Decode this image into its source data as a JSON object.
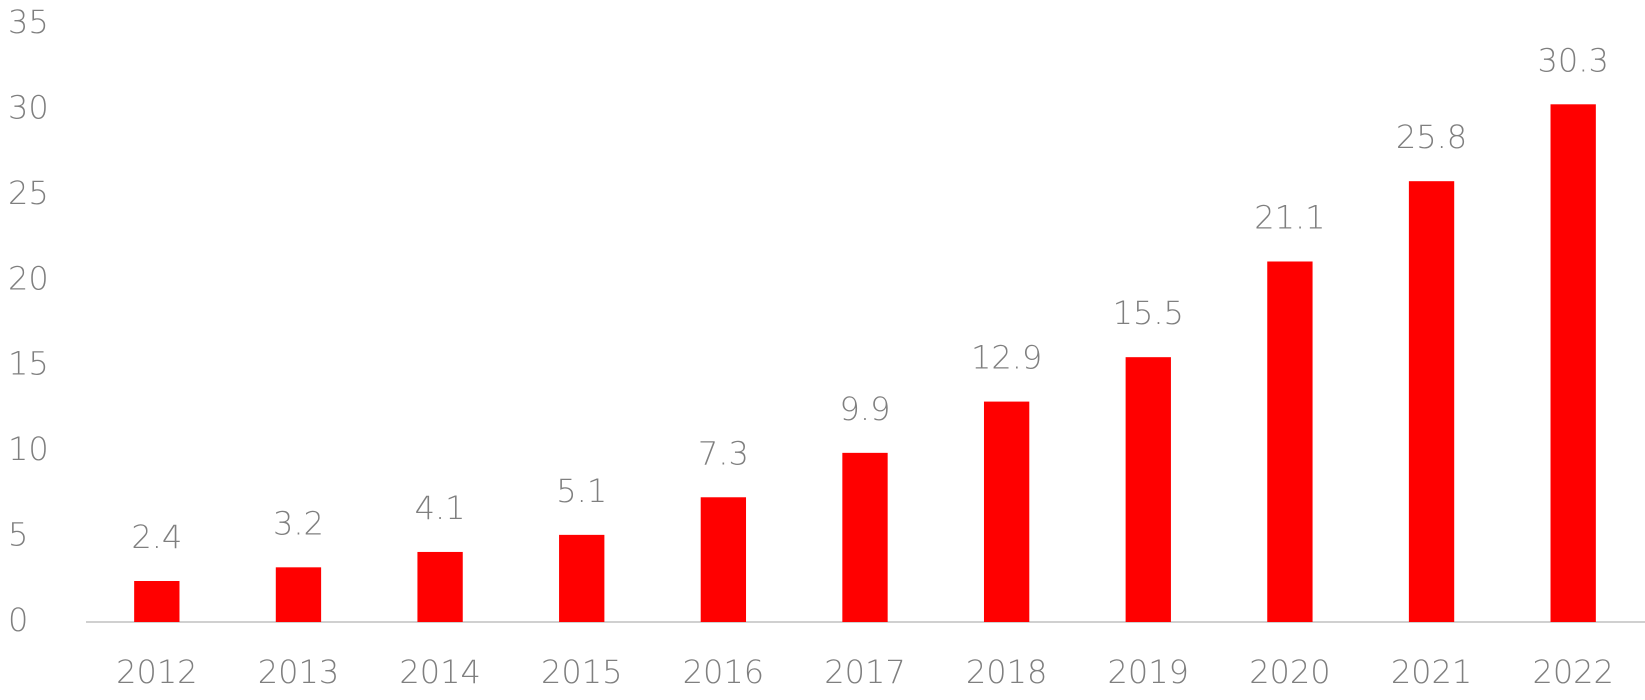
{
  "chart_data": {
    "type": "bar",
    "categories": [
      "2012",
      "2013",
      "2014",
      "2015",
      "2016",
      "2017",
      "2018",
      "2019",
      "2020",
      "2021",
      "2022"
    ],
    "values": [
      2.4,
      3.2,
      4.1,
      5.1,
      7.3,
      9.9,
      12.9,
      15.5,
      21.1,
      25.8,
      30.3
    ],
    "color": "#ff0000",
    "ylim": [
      0,
      35
    ],
    "yticks": [
      0,
      5,
      10,
      15,
      20,
      25,
      30,
      35
    ],
    "grid": false
  }
}
